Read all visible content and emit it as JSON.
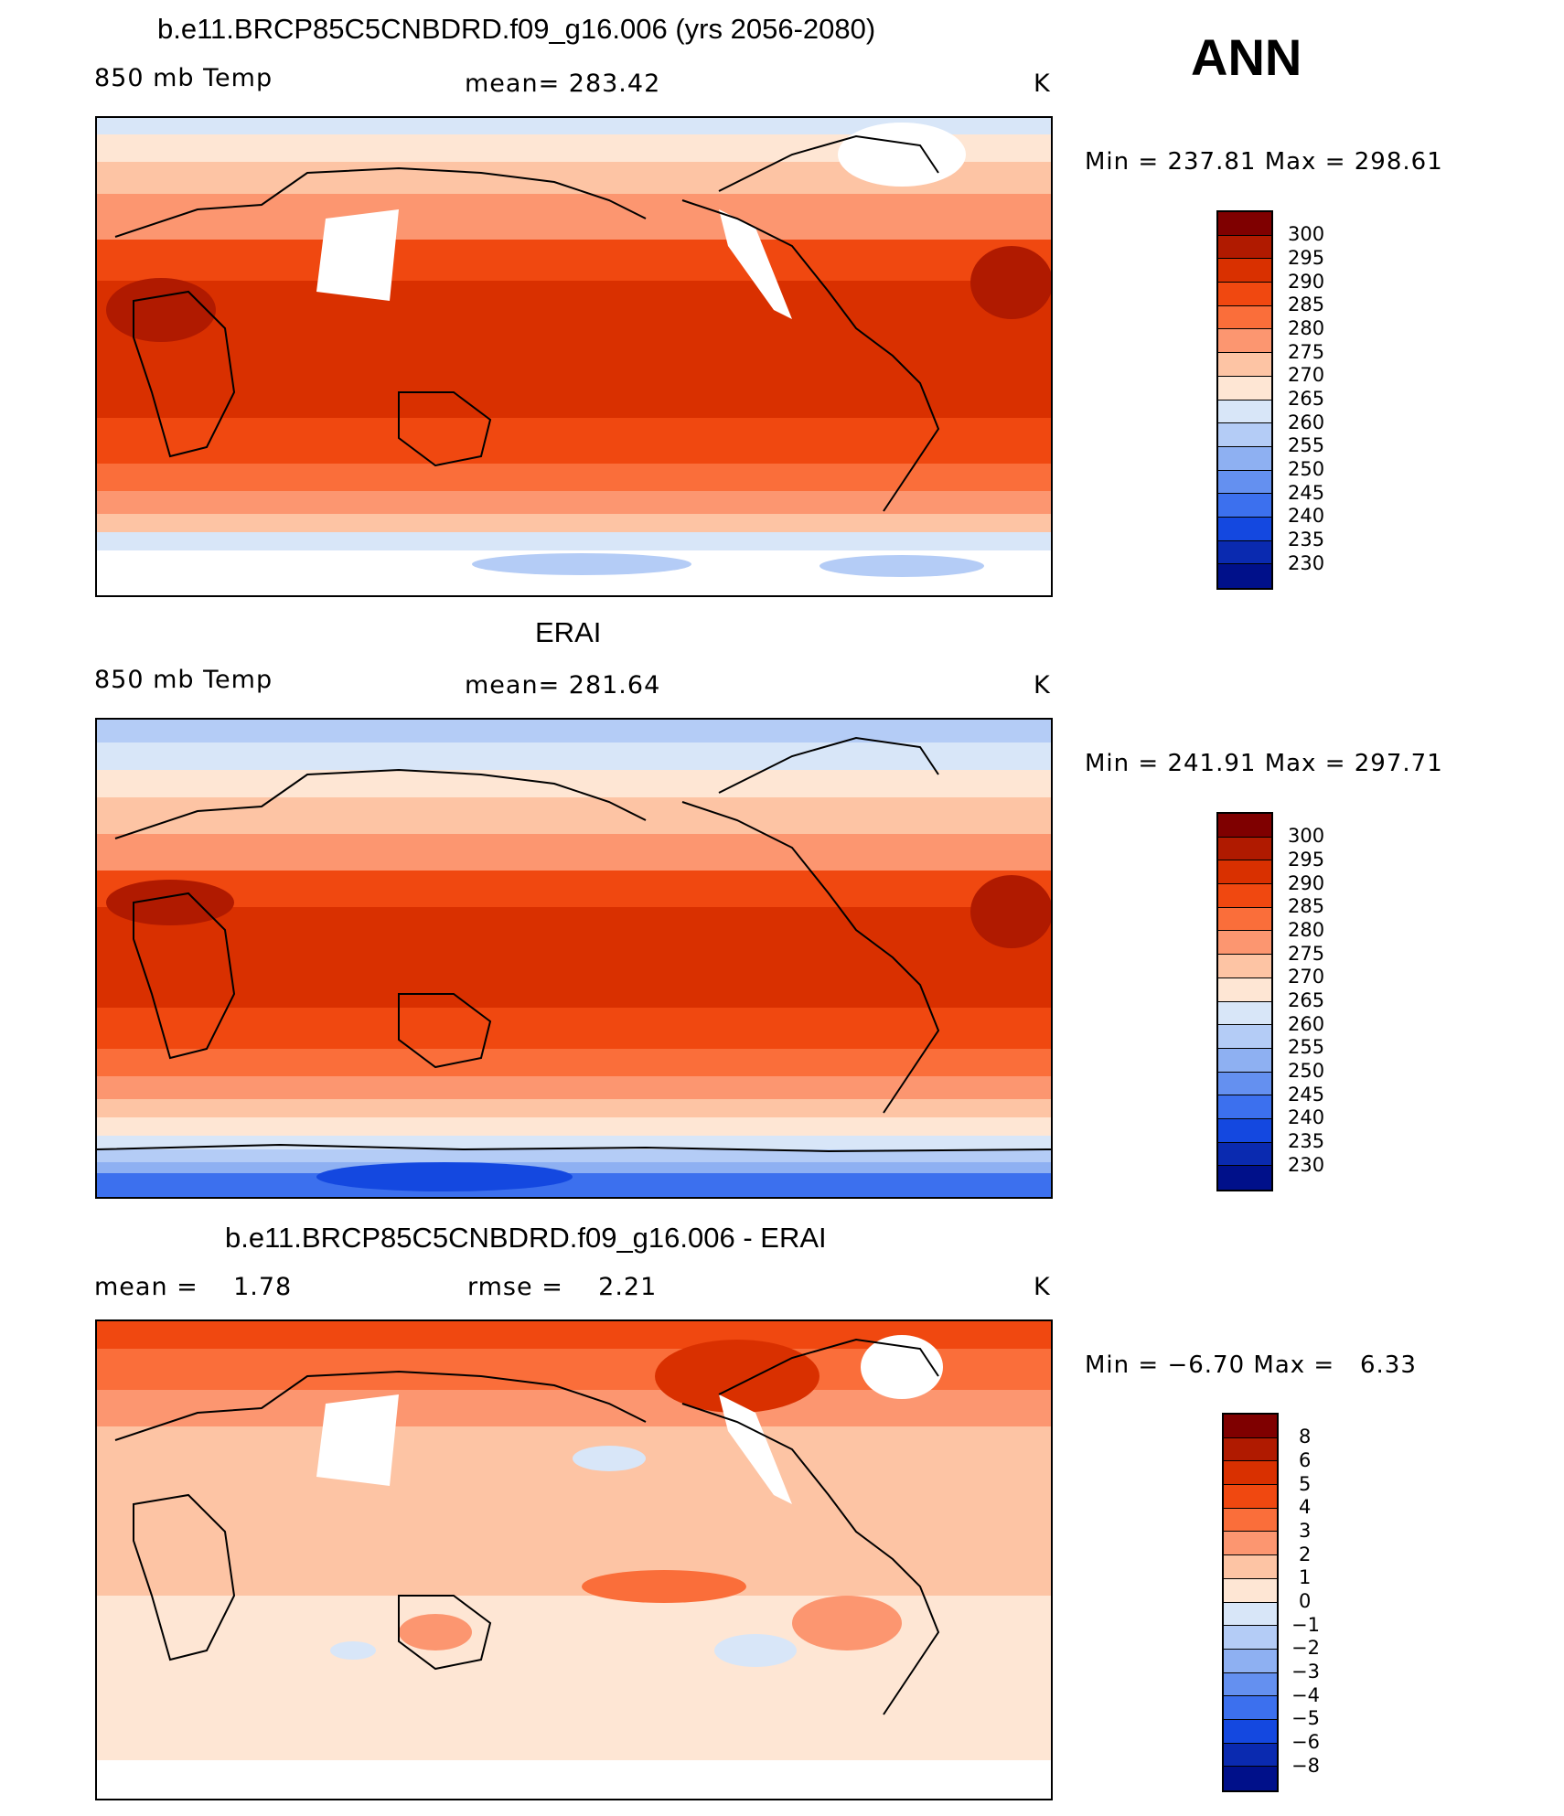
{
  "season": "ANN",
  "panel1": {
    "title": "b.e11.BRCP85C5CNBDRD.f09_g16.006 (yrs 2056-2080)",
    "left": "850 mb Temp",
    "center": "mean= 283.42",
    "unit": "K",
    "minmax": "Min = 237.81 Max = 298.61"
  },
  "panel2": {
    "title": "ERAI",
    "left": "850 mb Temp",
    "center": "mean= 281.64",
    "unit": "K",
    "minmax": "Min = 241.91 Max = 297.71"
  },
  "panel3": {
    "title": "b.e11.BRCP85C5CNBDRD.f09_g16.006 - ERAI",
    "left": "mean =    1.78",
    "center": "rmse =    2.21",
    "unit": "K",
    "minmax": "Min = −6.70 Max =   6.33"
  },
  "temp_colorbar": {
    "labels": [
      "300",
      "295",
      "290",
      "285",
      "280",
      "275",
      "270",
      "265",
      "260",
      "255",
      "250",
      "245",
      "240",
      "235",
      "230"
    ],
    "colors": [
      "#7f0000",
      "#b01a00",
      "#d93000",
      "#f04810",
      "#fa6e3a",
      "#fc9670",
      "#fdc4a4",
      "#fee6d4",
      "#d8e6f8",
      "#b4ccf6",
      "#8eb0f2",
      "#6490f0",
      "#3c70ee",
      "#1448e0",
      "#0a2ab0",
      "#00108a"
    ]
  },
  "diff_colorbar": {
    "labels": [
      "8",
      "6",
      "5",
      "4",
      "3",
      "2",
      "1",
      "0",
      "−1",
      "−2",
      "−3",
      "−4",
      "−5",
      "−6",
      "−8"
    ],
    "colors": [
      "#7f0000",
      "#b01a00",
      "#d93000",
      "#f04810",
      "#fa6e3a",
      "#fc9670",
      "#fdc4a4",
      "#fee6d4",
      "#d8e6f8",
      "#b4ccf6",
      "#8eb0f2",
      "#6490f0",
      "#3c70ee",
      "#1448e0",
      "#0a2ab0",
      "#00108a"
    ]
  }
}
